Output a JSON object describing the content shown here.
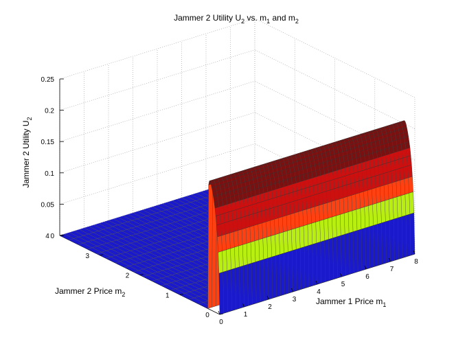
{
  "chart_data": {
    "type": "surface",
    "title": {
      "pre": "Jammer 2 Utility U",
      "sub1": "2",
      "mid": " vs. m",
      "sub2": "1",
      "and": " and m",
      "sub3": "2"
    },
    "xlabel": {
      "main": "Jammer 1 Price m",
      "sub": "1"
    },
    "ylabel": {
      "main": "Jammer 2 Price m",
      "sub": "2"
    },
    "zlabel": {
      "main": "Jammer 2 Utility U",
      "sub": "2"
    },
    "xlim": [
      0,
      8
    ],
    "ylim": [
      0,
      4
    ],
    "zlim": [
      0,
      0.25
    ],
    "x_ticks": [
      "0",
      "1",
      "2",
      "3",
      "4",
      "5",
      "6",
      "7",
      "8"
    ],
    "y_ticks": [
      "0",
      "1",
      "2",
      "3",
      "4"
    ],
    "z_ticks": [
      "0",
      "0.05",
      "0.1",
      "0.15",
      "0.2",
      "0.25"
    ],
    "grid": true,
    "colormap": [
      "#1a1acc",
      "#b8ee10",
      "#ff4010",
      "#cc1010",
      "#7a1010"
    ],
    "surface": {
      "m2_values": [
        0.0,
        0.02,
        0.04,
        0.06,
        0.08,
        0.1,
        0.12,
        0.14,
        0.16,
        0.18,
        0.2,
        0.22,
        0.24,
        0.26,
        0.28,
        0.3
      ],
      "U2_values": [
        0.0,
        0.065,
        0.098,
        0.122,
        0.14,
        0.154,
        0.166,
        0.175,
        0.183,
        0.19,
        0.196,
        0.201,
        0.204,
        0.205,
        0.198,
        0.0
      ],
      "note_m1_independent": true
    }
  }
}
